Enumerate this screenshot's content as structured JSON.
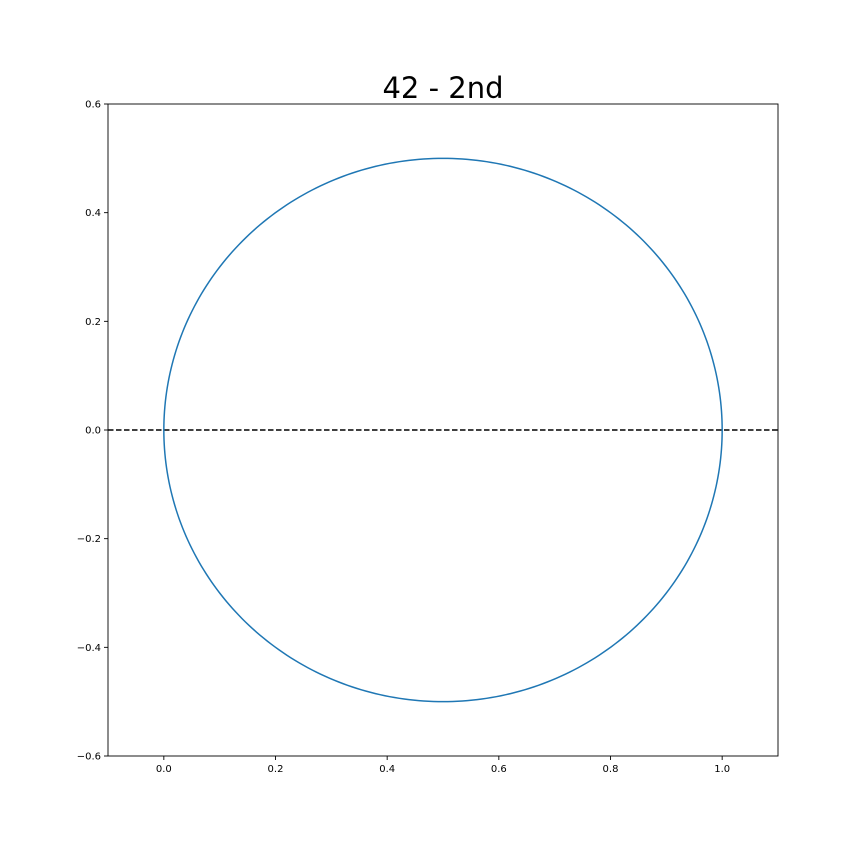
{
  "chart_data": {
    "type": "line",
    "title": "42 - 2nd",
    "xlabel": "",
    "ylabel": "",
    "xlim": [
      -0.1,
      1.1
    ],
    "ylim": [
      -0.6,
      0.6
    ],
    "grid": false,
    "xticks": [
      0.0,
      0.2,
      0.4,
      0.6,
      0.8,
      1.0
    ],
    "yticks": [
      -0.6,
      -0.4,
      -0.2,
      0.0,
      0.2,
      0.4,
      0.6
    ],
    "xtick_labels": [
      "0.0",
      "0.2",
      "0.4",
      "0.6",
      "0.8",
      "1.0"
    ],
    "ytick_labels": [
      "−0.6",
      "−0.4",
      "−0.2",
      "0.0",
      "0.2",
      "0.4",
      "0.6"
    ],
    "series": [
      {
        "kind": "circle",
        "center": [
          0.5,
          0.0
        ],
        "radius": 0.5,
        "color": "#1f77b4",
        "linestyle": "solid"
      }
    ],
    "reference_lines": [
      {
        "orientation": "horizontal",
        "y": 0.0,
        "color": "#000000",
        "linestyle": "dashed"
      }
    ]
  }
}
